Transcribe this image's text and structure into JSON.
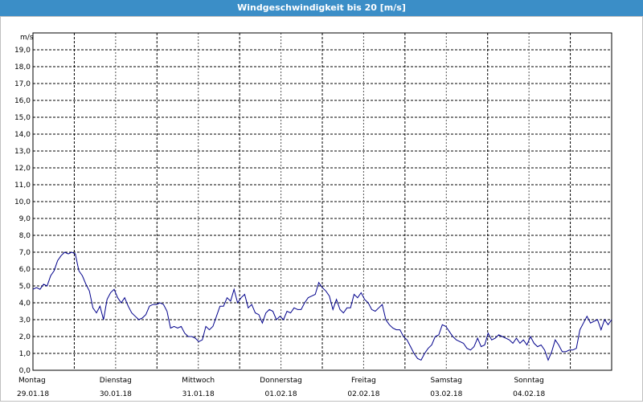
{
  "window": {
    "title": "Windgeschwindigkeit bis 20 [m/s]"
  },
  "chart_data": {
    "type": "line",
    "title": "Windgeschwindigkeit bis 20 [m/s]",
    "ylabel": "m/s",
    "ylim": [
      0,
      20
    ],
    "yticks": [
      "0,0",
      "1,0",
      "2,0",
      "3,0",
      "4,0",
      "5,0",
      "6,0",
      "7,0",
      "8,0",
      "9,0",
      "10,0",
      "11,0",
      "12,0",
      "13,0",
      "14,0",
      "15,0",
      "16,0",
      "17,0",
      "18,0",
      "19,0"
    ],
    "days": [
      {
        "name": "Montag",
        "date": "29.01.18"
      },
      {
        "name": "Dienstag",
        "date": "30.01.18"
      },
      {
        "name": "Mittwoch",
        "date": "31.01.18"
      },
      {
        "name": "Donnerstag",
        "date": "01.02.18"
      },
      {
        "name": "Freitag",
        "date": "02.02.18"
      },
      {
        "name": "Samstag",
        "date": "03.02.18"
      },
      {
        "name": "Sonntag",
        "date": "04.02.18"
      }
    ],
    "grid": true,
    "color": "#00008b",
    "series": [
      {
        "values": [
          4.8,
          4.9,
          4.8,
          5.1,
          5.0,
          5.6,
          5.9,
          6.5,
          6.8,
          7.0,
          6.9,
          7.0,
          6.9,
          5.9,
          5.6,
          5.1,
          4.7,
          3.7,
          3.4,
          3.8,
          3.0,
          4.2,
          4.6,
          4.8,
          4.3,
          4.0,
          4.3,
          3.8,
          3.4,
          3.2,
          3.0,
          3.1,
          3.3,
          3.8,
          3.9,
          3.9,
          4.0,
          3.9,
          3.5,
          2.5,
          2.6,
          2.5,
          2.6,
          2.2,
          2.0,
          2.0,
          1.9,
          1.7,
          1.8,
          2.6,
          2.4,
          2.6,
          3.2,
          3.8,
          3.8,
          4.3,
          4.1,
          4.8,
          4.0,
          4.3,
          4.5,
          3.7,
          3.9,
          3.4,
          3.3,
          2.8,
          3.4,
          3.6,
          3.5,
          3.0,
          3.2,
          3.0,
          3.5,
          3.4,
          3.7,
          3.6,
          3.6,
          4.0,
          4.3,
          4.4,
          4.5,
          5.2,
          4.9,
          4.7,
          4.4,
          3.6,
          4.2,
          3.6,
          3.4,
          3.7,
          3.7,
          4.5,
          4.3,
          4.6,
          4.2,
          4.0,
          3.6,
          3.5,
          3.7,
          3.9,
          3.0,
          2.7,
          2.5,
          2.4,
          2.4,
          2.0,
          1.8,
          1.4,
          1.0,
          0.7,
          0.6,
          1.0,
          1.3,
          1.5,
          2.0,
          2.1,
          2.7,
          2.6,
          2.3,
          2.0,
          1.8,
          1.7,
          1.6,
          1.3,
          1.2,
          1.4,
          1.9,
          1.4,
          1.5,
          2.2,
          1.8,
          1.9,
          2.1,
          2.0,
          1.9,
          1.8,
          1.6,
          1.9,
          1.6,
          1.8,
          1.5,
          2.0,
          1.6,
          1.4,
          1.5,
          1.2,
          0.6,
          1.1,
          1.8,
          1.5,
          1.1,
          1.1,
          1.2,
          1.2,
          1.3,
          2.4,
          2.8,
          3.2,
          2.8,
          2.9,
          3.0,
          2.4,
          3.0,
          2.7,
          3.0
        ]
      }
    ]
  }
}
